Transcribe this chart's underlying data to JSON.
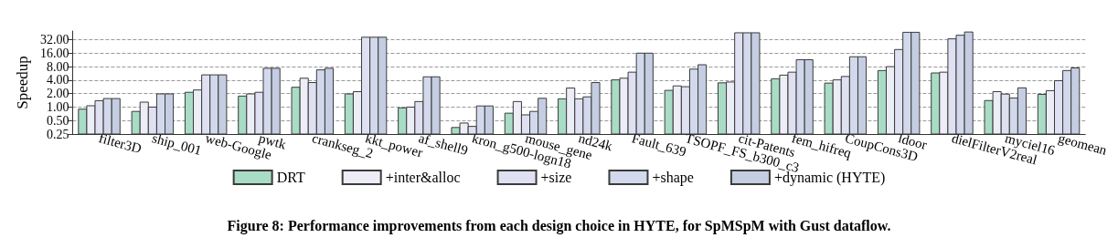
{
  "chart_data": {
    "type": "bar",
    "title": "Figure 8: Performance improvements from each design choice in HYTE, for SpMSpM with Gust dataflow.",
    "ylabel": "Speedup",
    "categories": [
      "filter3D",
      "ship_001",
      "web-Google",
      "pwtk",
      "crankseg_2",
      "kkt_power",
      "af_shell9",
      "kron_g500-logn18",
      "mouse_gene",
      "nd24k",
      "Fault_639",
      "TSOPF_FS_b300_c3",
      "cit-Patents",
      "fem_hifreq",
      "CoupCons3D",
      "ldoor",
      "dielFilterV2real",
      "myciel16",
      "geomean"
    ],
    "series": [
      {
        "name": "DRT",
        "color": "#a9dcc5",
        "values": [
          0.9,
          0.8,
          2.14,
          1.76,
          2.77,
          1.97,
          0.96,
          0.35,
          0.73,
          1.53,
          4.05,
          2.36,
          3.48,
          4.29,
          3.43,
          6.55,
          5.78,
          1.4,
          1.92
        ]
      },
      {
        "name": "+inter&alloc",
        "color": "#ededf7",
        "values": [
          1.07,
          1.29,
          2.41,
          1.97,
          4.41,
          2.21,
          1.0,
          0.44,
          1.33,
          2.66,
          4.41,
          2.97,
          3.63,
          5.17,
          4.05,
          8.0,
          6.02,
          2.21,
          2.33
        ]
      },
      {
        "name": "+size",
        "color": "#dfe1f2",
        "values": [
          1.39,
          1.0,
          5.24,
          2.14,
          3.53,
          36.3,
          1.33,
          0.37,
          0.67,
          1.53,
          6.02,
          2.85,
          45.6,
          6.02,
          4.82,
          19.3,
          33.4,
          1.95,
          3.89
        ]
      },
      {
        "name": "+shape",
        "color": "#d2d9ec",
        "values": [
          1.55,
          1.97,
          5.24,
          7.35,
          6.77,
          36.3,
          4.74,
          1.06,
          0.8,
          1.69,
          16,
          7.05,
          45.6,
          11.4,
          13.3,
          46.8,
          40.2,
          1.59,
          6.55
        ]
      },
      {
        "name": "+dynamic (HYTE)",
        "color": "#c4cde2",
        "values": [
          1.55,
          1.97,
          5.24,
          7.35,
          7.35,
          36.3,
          4.74,
          1.06,
          1.57,
          3.53,
          16,
          8.82,
          45.6,
          11.4,
          13.3,
          46.8,
          47.5,
          2.69,
          7.47
        ]
      }
    ],
    "log": "y",
    "ylim": [
      0.25,
      50
    ],
    "yticks": [
      {
        "value": 0.25,
        "label": "0.25"
      },
      {
        "value": 0.5,
        "label": "0.50"
      },
      {
        "value": 1,
        "label": "1.00"
      },
      {
        "value": 2,
        "label": "2.00"
      },
      {
        "value": 4,
        "label": "4.00"
      },
      {
        "value": 8,
        "label": "8.00"
      },
      {
        "value": 16,
        "label": "16.00"
      },
      {
        "value": 32,
        "label": "32.00"
      }
    ],
    "grid": "y",
    "legend": "bottom"
  }
}
